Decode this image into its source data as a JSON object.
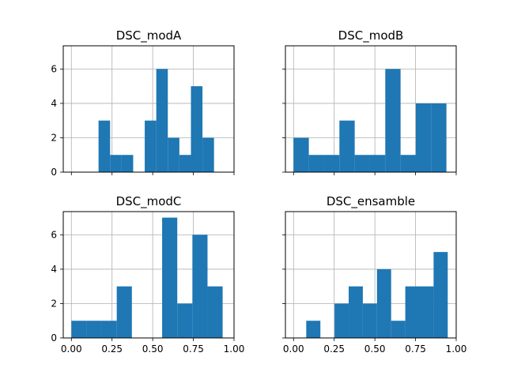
{
  "chart_data": [
    {
      "type": "bar",
      "title": "DSC_modA",
      "xlim": [
        -0.05,
        1.0
      ],
      "ylim": [
        0,
        7.35
      ],
      "xticks": [
        "0.00",
        "0.25",
        "0.50",
        "0.75",
        "1.00"
      ],
      "xtick_values": [
        0,
        0.25,
        0.5,
        0.75,
        1.0
      ],
      "yticks": [
        "0",
        "2",
        "4",
        "6"
      ],
      "ytick_values": [
        0,
        2,
        4,
        6
      ],
      "bins": [
        [
          0.167,
          0.238
        ],
        [
          0.238,
          0.309
        ],
        [
          0.309,
          0.38
        ],
        [
          0.38,
          0.451
        ],
        [
          0.451,
          0.522
        ],
        [
          0.522,
          0.593
        ],
        [
          0.593,
          0.664
        ],
        [
          0.664,
          0.735
        ],
        [
          0.735,
          0.806
        ],
        [
          0.806,
          0.877
        ]
      ],
      "values": [
        3,
        1,
        1,
        0,
        3,
        6,
        2,
        1,
        5,
        2
      ],
      "color": "#1f77b4",
      "grid": true,
      "show_xticklabels": false,
      "show_yticklabels": true
    },
    {
      "type": "bar",
      "title": "DSC_modB",
      "xlim": [
        -0.05,
        1.0
      ],
      "ylim": [
        0,
        7.35
      ],
      "xticks": [
        "0.00",
        "0.25",
        "0.50",
        "0.75",
        "1.00"
      ],
      "xtick_values": [
        0,
        0.25,
        0.5,
        0.75,
        1.0
      ],
      "yticks": [
        "0",
        "2",
        "4",
        "6"
      ],
      "ytick_values": [
        0,
        2,
        4,
        6
      ],
      "bins": [
        [
          0.0,
          0.094
        ],
        [
          0.094,
          0.188
        ],
        [
          0.188,
          0.282
        ],
        [
          0.282,
          0.376
        ],
        [
          0.376,
          0.47
        ],
        [
          0.47,
          0.564
        ],
        [
          0.564,
          0.658
        ],
        [
          0.658,
          0.752
        ],
        [
          0.752,
          0.846
        ],
        [
          0.846,
          0.94
        ]
      ],
      "values": [
        2,
        1,
        1,
        3,
        1,
        1,
        6,
        1,
        4,
        4
      ],
      "color": "#1f77b4",
      "grid": true,
      "show_xticklabels": false,
      "show_yticklabels": false
    },
    {
      "type": "bar",
      "title": "DSC_modC",
      "xlim": [
        -0.05,
        1.0
      ],
      "ylim": [
        0,
        7.35
      ],
      "xticks": [
        "0.00",
        "0.25",
        "0.50",
        "0.75",
        "1.00"
      ],
      "xtick_values": [
        0,
        0.25,
        0.5,
        0.75,
        1.0
      ],
      "yticks": [
        "0",
        "2",
        "4",
        "6"
      ],
      "ytick_values": [
        0,
        2,
        4,
        6
      ],
      "bins": [
        [
          0.0,
          0.093
        ],
        [
          0.093,
          0.186
        ],
        [
          0.186,
          0.279
        ],
        [
          0.279,
          0.372
        ],
        [
          0.372,
          0.465
        ],
        [
          0.465,
          0.558
        ],
        [
          0.558,
          0.651
        ],
        [
          0.651,
          0.744
        ],
        [
          0.744,
          0.837
        ],
        [
          0.837,
          0.93
        ]
      ],
      "values": [
        1,
        1,
        1,
        3,
        0,
        0,
        7,
        2,
        6,
        3
      ],
      "color": "#1f77b4",
      "grid": true,
      "show_xticklabels": true,
      "show_yticklabels": true
    },
    {
      "type": "bar",
      "title": "DSC_ensamble",
      "xlim": [
        -0.05,
        1.0
      ],
      "ylim": [
        0,
        7.35
      ],
      "xticks": [
        "0.00",
        "0.25",
        "0.50",
        "0.75",
        "1.00"
      ],
      "xtick_values": [
        0,
        0.25,
        0.5,
        0.75,
        1.0
      ],
      "yticks": [
        "0",
        "2",
        "4",
        "6"
      ],
      "ytick_values": [
        0,
        2,
        4,
        6
      ],
      "bins": [
        [
          0.078,
          0.165
        ],
        [
          0.165,
          0.252
        ],
        [
          0.252,
          0.339
        ],
        [
          0.339,
          0.426
        ],
        [
          0.426,
          0.513
        ],
        [
          0.513,
          0.6
        ],
        [
          0.6,
          0.687
        ],
        [
          0.687,
          0.774
        ],
        [
          0.774,
          0.861
        ],
        [
          0.861,
          0.948
        ]
      ],
      "values": [
        1,
        0,
        2,
        3,
        2,
        4,
        1,
        3,
        3,
        5
      ],
      "color": "#1f77b4",
      "grid": true,
      "show_xticklabels": true,
      "show_yticklabels": false
    }
  ]
}
